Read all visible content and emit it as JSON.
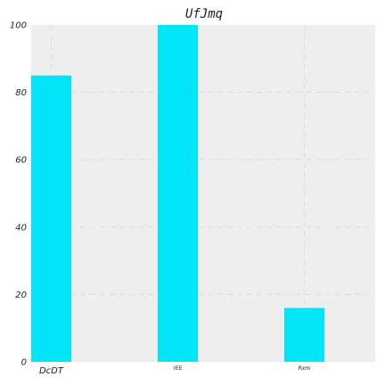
{
  "chart_data": {
    "type": "bar",
    "title": "UfJmq",
    "xlabel": "",
    "ylabel": "",
    "categories": [
      "DcDT",
      "rEE",
      "Rxm"
    ],
    "values": [
      85,
      100,
      16
    ],
    "ylim": [
      0,
      100
    ],
    "yticks": [
      "0",
      "20",
      "40",
      "60",
      "80",
      "100"
    ],
    "grid": true,
    "colors": {
      "bar": "#00e5f7",
      "plot_background": "#eeeeee"
    }
  }
}
